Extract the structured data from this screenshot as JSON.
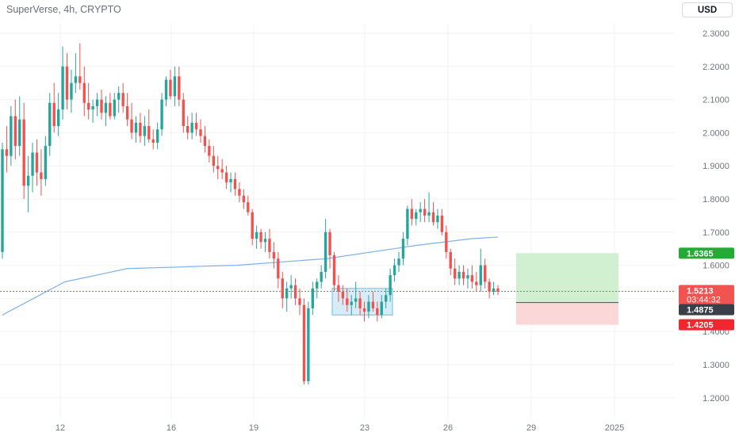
{
  "header": {
    "title": "SuperVerse, 4h, CRYPTO",
    "currency_label": "USD"
  },
  "colors": {
    "up": "#26a69a",
    "down": "#ef5350",
    "ma": "#7eb0f0",
    "profit_zone": "#c8edc8",
    "loss_zone": "#fbd0d0",
    "demand_zone": "#d4ebf7",
    "tag_target": "#22ab35",
    "tag_price": "#f05350",
    "tag_entry": "#3a3e48",
    "tag_stop": "#f2262d"
  },
  "chart_data": {
    "type": "candlestick",
    "symbol": "SuperVerse",
    "interval": "4h",
    "exchange": "CRYPTO",
    "currency": "USD",
    "ylim": [
      1.15,
      2.35
    ],
    "y_ticks": [
      "2.3000",
      "2.2000",
      "2.1000",
      "2.0000",
      "1.9000",
      "1.8000",
      "1.7000",
      "1.6000",
      "1.5000",
      "1.4000",
      "1.3000",
      "1.2000"
    ],
    "x_ticks": [
      "12",
      "16",
      "19",
      "23",
      "26",
      "29",
      "2025"
    ],
    "candles": [
      [
        1.64,
        1.97,
        1.62,
        1.95
      ],
      [
        1.95,
        2.02,
        1.88,
        1.93
      ],
      [
        1.93,
        2.08,
        1.9,
        2.05
      ],
      [
        2.05,
        2.1,
        1.92,
        1.96
      ],
      [
        1.96,
        2.11,
        1.93,
        2.04
      ],
      [
        2.04,
        2.09,
        1.8,
        1.84
      ],
      [
        1.84,
        1.93,
        1.76,
        1.87
      ],
      [
        1.87,
        1.97,
        1.82,
        1.94
      ],
      [
        1.94,
        1.98,
        1.84,
        1.88
      ],
      [
        1.88,
        1.95,
        1.81,
        1.86
      ],
      [
        1.86,
        1.99,
        1.84,
        1.96
      ],
      [
        1.96,
        2.12,
        1.93,
        2.09
      ],
      [
        2.09,
        2.15,
        2.0,
        2.02
      ],
      [
        2.02,
        2.12,
        1.99,
        2.07
      ],
      [
        2.07,
        2.26,
        2.04,
        2.2
      ],
      [
        2.2,
        2.24,
        2.07,
        2.1
      ],
      [
        2.1,
        2.19,
        2.06,
        2.15
      ],
      [
        2.15,
        2.24,
        2.12,
        2.17
      ],
      [
        2.17,
        2.27,
        2.13,
        2.15
      ],
      [
        2.15,
        2.2,
        2.05,
        2.09
      ],
      [
        2.09,
        2.15,
        2.04,
        2.07
      ],
      [
        2.07,
        2.1,
        2.03,
        2.08
      ],
      [
        2.08,
        2.12,
        2.05,
        2.1
      ],
      [
        2.1,
        2.13,
        2.04,
        2.06
      ],
      [
        2.06,
        2.11,
        2.02,
        2.09
      ],
      [
        2.09,
        2.12,
        2.04,
        2.05
      ],
      [
        2.05,
        2.12,
        2.04,
        2.1
      ],
      [
        2.1,
        2.14,
        2.06,
        2.12
      ],
      [
        2.12,
        2.15,
        2.06,
        2.08
      ],
      [
        2.08,
        2.12,
        2.02,
        2.04
      ],
      [
        2.04,
        2.09,
        1.98,
        2.0
      ],
      [
        2.0,
        2.05,
        1.97,
        2.03
      ],
      [
        2.03,
        2.06,
        1.97,
        1.99
      ],
      [
        1.99,
        2.05,
        1.96,
        2.02
      ],
      [
        2.02,
        2.07,
        1.97,
        1.98
      ],
      [
        1.98,
        2.01,
        1.95,
        1.97
      ],
      [
        1.97,
        2.03,
        1.95,
        2.01
      ],
      [
        2.01,
        2.12,
        1.99,
        2.1
      ],
      [
        2.1,
        2.17,
        2.08,
        2.16
      ],
      [
        2.16,
        2.19,
        2.1,
        2.11
      ],
      [
        2.11,
        2.2,
        2.08,
        2.17
      ],
      [
        2.17,
        2.2,
        2.08,
        2.1
      ],
      [
        2.1,
        2.12,
        2.0,
        2.02
      ],
      [
        2.02,
        2.05,
        1.98,
        2.0
      ],
      [
        2.0,
        2.06,
        1.98,
        2.03
      ],
      [
        2.03,
        2.06,
        1.99,
        2.01
      ],
      [
        2.01,
        2.04,
        1.97,
        1.99
      ],
      [
        1.99,
        2.02,
        1.94,
        1.96
      ],
      [
        1.96,
        1.98,
        1.91,
        1.93
      ],
      [
        1.93,
        1.96,
        1.88,
        1.9
      ],
      [
        1.9,
        1.93,
        1.86,
        1.89
      ],
      [
        1.89,
        1.92,
        1.86,
        1.88
      ],
      [
        1.88,
        1.9,
        1.83,
        1.85
      ],
      [
        1.85,
        1.88,
        1.82,
        1.86
      ],
      [
        1.86,
        1.88,
        1.81,
        1.83
      ],
      [
        1.83,
        1.85,
        1.79,
        1.81
      ],
      [
        1.81,
        1.83,
        1.77,
        1.79
      ],
      [
        1.79,
        1.81,
        1.75,
        1.76
      ],
      [
        1.76,
        1.77,
        1.66,
        1.68
      ],
      [
        1.68,
        1.72,
        1.65,
        1.7
      ],
      [
        1.7,
        1.71,
        1.65,
        1.67
      ],
      [
        1.67,
        1.7,
        1.64,
        1.68
      ],
      [
        1.68,
        1.71,
        1.62,
        1.64
      ],
      [
        1.64,
        1.67,
        1.59,
        1.62
      ],
      [
        1.62,
        1.64,
        1.53,
        1.56
      ],
      [
        1.56,
        1.58,
        1.47,
        1.5
      ],
      [
        1.5,
        1.55,
        1.46,
        1.53
      ],
      [
        1.53,
        1.57,
        1.5,
        1.54
      ],
      [
        1.54,
        1.56,
        1.48,
        1.5
      ],
      [
        1.5,
        1.53,
        1.45,
        1.48
      ],
      [
        1.48,
        1.5,
        1.24,
        1.25
      ],
      [
        1.25,
        1.49,
        1.24,
        1.47
      ],
      [
        1.47,
        1.55,
        1.45,
        1.53
      ],
      [
        1.53,
        1.56,
        1.5,
        1.55
      ],
      [
        1.55,
        1.6,
        1.53,
        1.58
      ],
      [
        1.58,
        1.74,
        1.56,
        1.7
      ],
      [
        1.7,
        1.71,
        1.59,
        1.63
      ],
      [
        1.63,
        1.64,
        1.52,
        1.54
      ],
      [
        1.54,
        1.57,
        1.49,
        1.52
      ],
      [
        1.52,
        1.54,
        1.48,
        1.5
      ],
      [
        1.5,
        1.53,
        1.46,
        1.48
      ],
      [
        1.48,
        1.51,
        1.45,
        1.49
      ],
      [
        1.49,
        1.55,
        1.47,
        1.5
      ],
      [
        1.5,
        1.52,
        1.45,
        1.47
      ],
      [
        1.47,
        1.49,
        1.43,
        1.46
      ],
      [
        1.46,
        1.51,
        1.44,
        1.49
      ],
      [
        1.49,
        1.52,
        1.46,
        1.47
      ],
      [
        1.47,
        1.49,
        1.43,
        1.45
      ],
      [
        1.45,
        1.51,
        1.44,
        1.49
      ],
      [
        1.49,
        1.53,
        1.47,
        1.51
      ],
      [
        1.51,
        1.59,
        1.49,
        1.57
      ],
      [
        1.57,
        1.62,
        1.55,
        1.6
      ],
      [
        1.6,
        1.64,
        1.58,
        1.62
      ],
      [
        1.62,
        1.7,
        1.6,
        1.68
      ],
      [
        1.68,
        1.78,
        1.66,
        1.77
      ],
      [
        1.77,
        1.8,
        1.72,
        1.74
      ],
      [
        1.74,
        1.77,
        1.72,
        1.76
      ],
      [
        1.76,
        1.79,
        1.73,
        1.77
      ],
      [
        1.77,
        1.8,
        1.73,
        1.75
      ],
      [
        1.75,
        1.82,
        1.73,
        1.76
      ],
      [
        1.76,
        1.79,
        1.72,
        1.73
      ],
      [
        1.73,
        1.77,
        1.71,
        1.75
      ],
      [
        1.75,
        1.77,
        1.69,
        1.7
      ],
      [
        1.7,
        1.72,
        1.62,
        1.64
      ],
      [
        1.64,
        1.65,
        1.57,
        1.59
      ],
      [
        1.59,
        1.62,
        1.54,
        1.56
      ],
      [
        1.56,
        1.6,
        1.54,
        1.58
      ],
      [
        1.58,
        1.6,
        1.54,
        1.56
      ],
      [
        1.56,
        1.59,
        1.53,
        1.57
      ],
      [
        1.57,
        1.6,
        1.53,
        1.55
      ],
      [
        1.55,
        1.58,
        1.52,
        1.54
      ],
      [
        1.54,
        1.65,
        1.52,
        1.6
      ],
      [
        1.6,
        1.62,
        1.53,
        1.55
      ],
      [
        1.55,
        1.56,
        1.5,
        1.52
      ],
      [
        1.52,
        1.55,
        1.51,
        1.53
      ],
      [
        1.53,
        1.54,
        1.51,
        1.52
      ]
    ],
    "moving_average": [
      [
        0,
        1.45
      ],
      [
        80,
        1.55
      ],
      [
        160,
        1.59
      ],
      [
        300,
        1.6
      ],
      [
        415,
        1.62
      ],
      [
        530,
        1.66
      ],
      [
        600,
        1.68
      ],
      [
        634,
        1.685
      ]
    ],
    "demand_zone": {
      "low": 1.45,
      "high": 1.53
    },
    "position": {
      "target": 1.6365,
      "entry": 1.4875,
      "stop": 1.4205
    },
    "last_price": 1.5213,
    "price_labels": {
      "target": "1.6365",
      "last": "1.5213",
      "countdown": "03:44:32",
      "entry": "1.4875",
      "stop": "1.4205"
    }
  }
}
